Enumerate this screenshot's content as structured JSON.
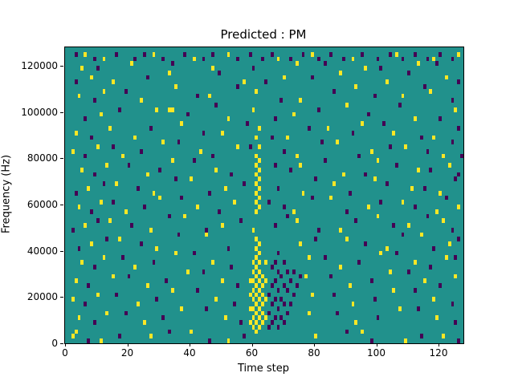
{
  "figure": {
    "title": "Predicted : PM",
    "xlabel": "Time step",
    "ylabel": "Frequency (Hz)"
  },
  "chart_data": {
    "type": "heatmap",
    "title": "Predicted : PM",
    "xlabel": "Time step",
    "ylabel": "Frequency (Hz)",
    "xlim": [
      0,
      128
    ],
    "ylim": [
      0,
      128000
    ],
    "x_ticks": [
      0,
      20,
      40,
      60,
      80,
      100,
      120
    ],
    "y_ticks": [
      0,
      20000,
      40000,
      60000,
      80000,
      100000,
      120000
    ],
    "grid": false,
    "legend": "none",
    "colors": {
      "background": "#21918c",
      "high": "#fde725",
      "low": "#440154"
    },
    "cell_size": {
      "time_steps": 1,
      "hz": 2000
    },
    "high_cells": [
      [
        6,
        124000
      ],
      [
        12,
        122000
      ],
      [
        28,
        124000
      ],
      [
        41,
        122000
      ],
      [
        52,
        124000
      ],
      [
        68,
        122000
      ],
      [
        79,
        124000
      ],
      [
        92,
        122000
      ],
      [
        106,
        124000
      ],
      [
        118,
        122000
      ],
      [
        126,
        124000
      ],
      [
        5,
        118000
      ],
      [
        21,
        120000
      ],
      [
        47,
        118000
      ],
      [
        74,
        120000
      ],
      [
        96,
        118000
      ],
      [
        113,
        120000
      ],
      [
        8,
        114000
      ],
      [
        15,
        112000
      ],
      [
        33,
        116000
      ],
      [
        57,
        112000
      ],
      [
        70,
        114000
      ],
      [
        88,
        116000
      ],
      [
        103,
        112000
      ],
      [
        122,
        114000
      ],
      [
        4,
        106000
      ],
      [
        12,
        108000
      ],
      [
        24,
        104000
      ],
      [
        35,
        110000
      ],
      [
        46,
        106000
      ],
      [
        61,
        108000
      ],
      [
        75,
        104000
      ],
      [
        93,
        110000
      ],
      [
        108,
        106000
      ],
      [
        117,
        108000
      ],
      [
        11,
        98000
      ],
      [
        29,
        100000
      ],
      [
        33,
        100000
      ],
      [
        34,
        100000
      ],
      [
        52,
        96000
      ],
      [
        60,
        100000
      ],
      [
        73,
        98000
      ],
      [
        90,
        102000
      ],
      [
        112,
        96000
      ],
      [
        125,
        100000
      ],
      [
        3,
        90000
      ],
      [
        14,
        92000
      ],
      [
        22,
        88000
      ],
      [
        37,
        94000
      ],
      [
        50,
        90000
      ],
      [
        71,
        88000
      ],
      [
        84,
        92000
      ],
      [
        95,
        94000
      ],
      [
        105,
        90000
      ],
      [
        118,
        88000
      ],
      [
        2,
        82000
      ],
      [
        10,
        84000
      ],
      [
        18,
        80000
      ],
      [
        31,
        86000
      ],
      [
        43,
        82000
      ],
      [
        55,
        84000
      ],
      [
        74,
        80000
      ],
      [
        87,
        86000
      ],
      [
        98,
        82000
      ],
      [
        109,
        84000
      ],
      [
        121,
        80000
      ],
      [
        5,
        74000
      ],
      [
        13,
        76000
      ],
      [
        26,
        72000
      ],
      [
        34,
        78000
      ],
      [
        48,
        74000
      ],
      [
        75,
        76000
      ],
      [
        89,
        72000
      ],
      [
        100,
        78000
      ],
      [
        113,
        74000
      ],
      [
        123,
        76000
      ],
      [
        61,
        56000
      ],
      [
        62,
        58000
      ],
      [
        61,
        60000
      ],
      [
        62,
        62000
      ],
      [
        61,
        64000
      ],
      [
        62,
        66000
      ],
      [
        61,
        68000
      ],
      [
        62,
        70000
      ],
      [
        61,
        72000
      ],
      [
        62,
        74000
      ],
      [
        61,
        76000
      ],
      [
        62,
        78000
      ],
      [
        61,
        80000
      ],
      [
        62,
        84000
      ],
      [
        61,
        88000
      ],
      [
        62,
        92000
      ],
      [
        7,
        66000
      ],
      [
        16,
        68000
      ],
      [
        28,
        64000
      ],
      [
        40,
        70000
      ],
      [
        51,
        66000
      ],
      [
        76,
        64000
      ],
      [
        86,
        68000
      ],
      [
        99,
        70000
      ],
      [
        111,
        66000
      ],
      [
        120,
        64000
      ],
      [
        4,
        58000
      ],
      [
        11,
        60000
      ],
      [
        19,
        56000
      ],
      [
        30,
        62000
      ],
      [
        42,
        58000
      ],
      [
        54,
        60000
      ],
      [
        73,
        56000
      ],
      [
        85,
        62000
      ],
      [
        97,
        58000
      ],
      [
        108,
        60000
      ],
      [
        119,
        56000
      ],
      [
        126,
        58000
      ],
      [
        6,
        50000
      ],
      [
        14,
        52000
      ],
      [
        27,
        48000
      ],
      [
        38,
        54000
      ],
      [
        50,
        50000
      ],
      [
        60,
        48000
      ],
      [
        74,
        52000
      ],
      [
        88,
        48000
      ],
      [
        100,
        54000
      ],
      [
        110,
        50000
      ],
      [
        121,
        52000
      ],
      [
        59,
        8000
      ],
      [
        59,
        14000
      ],
      [
        59,
        20000
      ],
      [
        59,
        26000
      ],
      [
        60,
        6000
      ],
      [
        60,
        10000
      ],
      [
        60,
        14000
      ],
      [
        60,
        18000
      ],
      [
        60,
        22000
      ],
      [
        60,
        26000
      ],
      [
        60,
        30000
      ],
      [
        60,
        34000
      ],
      [
        61,
        4000
      ],
      [
        61,
        8000
      ],
      [
        61,
        12000
      ],
      [
        61,
        16000
      ],
      [
        61,
        20000
      ],
      [
        61,
        24000
      ],
      [
        61,
        28000
      ],
      [
        61,
        32000
      ],
      [
        61,
        36000
      ],
      [
        61,
        40000
      ],
      [
        61,
        44000
      ],
      [
        62,
        6000
      ],
      [
        62,
        10000
      ],
      [
        62,
        14000
      ],
      [
        62,
        18000
      ],
      [
        62,
        22000
      ],
      [
        62,
        26000
      ],
      [
        62,
        30000
      ],
      [
        62,
        34000
      ],
      [
        62,
        38000
      ],
      [
        62,
        42000
      ],
      [
        63,
        8000
      ],
      [
        63,
        12000
      ],
      [
        63,
        16000
      ],
      [
        63,
        20000
      ],
      [
        63,
        24000
      ],
      [
        63,
        28000
      ],
      [
        64,
        10000
      ],
      [
        64,
        18000
      ],
      [
        64,
        26000
      ],
      [
        64,
        34000
      ],
      [
        8,
        42000
      ],
      [
        17,
        44000
      ],
      [
        29,
        40000
      ],
      [
        45,
        46000
      ],
      [
        75,
        42000
      ],
      [
        90,
        44000
      ],
      [
        103,
        40000
      ],
      [
        114,
        46000
      ],
      [
        123,
        42000
      ],
      [
        5,
        34000
      ],
      [
        12,
        36000
      ],
      [
        22,
        32000
      ],
      [
        35,
        38000
      ],
      [
        47,
        34000
      ],
      [
        78,
        36000
      ],
      [
        88,
        32000
      ],
      [
        101,
        38000
      ],
      [
        112,
        34000
      ],
      [
        122,
        36000
      ],
      [
        3,
        26000
      ],
      [
        15,
        28000
      ],
      [
        26,
        24000
      ],
      [
        39,
        30000
      ],
      [
        50,
        26000
      ],
      [
        77,
        28000
      ],
      [
        91,
        24000
      ],
      [
        104,
        30000
      ],
      [
        115,
        26000
      ],
      [
        125,
        28000
      ],
      [
        2,
        18000
      ],
      [
        10,
        20000
      ],
      [
        23,
        16000
      ],
      [
        34,
        22000
      ],
      [
        48,
        18000
      ],
      [
        79,
        20000
      ],
      [
        92,
        16000
      ],
      [
        105,
        22000
      ],
      [
        118,
        18000
      ],
      [
        4,
        10000
      ],
      [
        13,
        12000
      ],
      [
        25,
        8000
      ],
      [
        37,
        14000
      ],
      [
        51,
        10000
      ],
      [
        78,
        12000
      ],
      [
        93,
        8000
      ],
      [
        107,
        14000
      ],
      [
        119,
        10000
      ],
      [
        2,
        2000
      ],
      [
        3,
        4000
      ],
      [
        11,
        0
      ],
      [
        27,
        2000
      ],
      [
        40,
        4000
      ],
      [
        52,
        0
      ],
      [
        80,
        2000
      ],
      [
        95,
        4000
      ],
      [
        109,
        0
      ],
      [
        121,
        2000
      ]
    ],
    "low_cells": [
      [
        3,
        124000
      ],
      [
        9,
        122000
      ],
      [
        16,
        124000
      ],
      [
        22,
        122000
      ],
      [
        25,
        124000
      ],
      [
        31,
        122000
      ],
      [
        38,
        124000
      ],
      [
        44,
        122000
      ],
      [
        47,
        124000
      ],
      [
        55,
        122000
      ],
      [
        59,
        124000
      ],
      [
        63,
        122000
      ],
      [
        66,
        124000
      ],
      [
        72,
        122000
      ],
      [
        76,
        124000
      ],
      [
        81,
        122000
      ],
      [
        85,
        124000
      ],
      [
        89,
        122000
      ],
      [
        95,
        124000
      ],
      [
        100,
        122000
      ],
      [
        104,
        124000
      ],
      [
        108,
        122000
      ],
      [
        112,
        124000
      ],
      [
        116,
        122000
      ],
      [
        120,
        124000
      ],
      [
        124,
        122000
      ],
      [
        10,
        118000
      ],
      [
        34,
        120000
      ],
      [
        60,
        118000
      ],
      [
        83,
        120000
      ],
      [
        101,
        118000
      ],
      [
        119,
        120000
      ],
      [
        3,
        112000
      ],
      [
        26,
        114000
      ],
      [
        49,
        116000
      ],
      [
        64,
        112000
      ],
      [
        79,
        114000
      ],
      [
        110,
        116000
      ],
      [
        126,
        112000
      ],
      [
        9,
        104000
      ],
      [
        19,
        108000
      ],
      [
        42,
        106000
      ],
      [
        55,
        110000
      ],
      [
        69,
        104000
      ],
      [
        86,
        108000
      ],
      [
        99,
        106000
      ],
      [
        115,
        110000
      ],
      [
        124,
        104000
      ],
      [
        6,
        96000
      ],
      [
        17,
        100000
      ],
      [
        39,
        98000
      ],
      [
        48,
        102000
      ],
      [
        67,
        96000
      ],
      [
        81,
        100000
      ],
      [
        97,
        98000
      ],
      [
        107,
        102000
      ],
      [
        120,
        96000
      ],
      [
        8,
        88000
      ],
      [
        27,
        92000
      ],
      [
        44,
        90000
      ],
      [
        58,
        94000
      ],
      [
        66,
        88000
      ],
      [
        78,
        92000
      ],
      [
        92,
        90000
      ],
      [
        102,
        94000
      ],
      [
        114,
        88000
      ],
      [
        126,
        92000
      ],
      [
        6,
        80000
      ],
      [
        15,
        84000
      ],
      [
        24,
        82000
      ],
      [
        36,
        86000
      ],
      [
        47,
        80000
      ],
      [
        59,
        84000
      ],
      [
        70,
        82000
      ],
      [
        82,
        86000
      ],
      [
        94,
        80000
      ],
      [
        104,
        84000
      ],
      [
        116,
        82000
      ],
      [
        124,
        86000
      ],
      [
        127,
        80000
      ],
      [
        9,
        72000
      ],
      [
        20,
        76000
      ],
      [
        30,
        74000
      ],
      [
        41,
        78000
      ],
      [
        53,
        72000
      ],
      [
        67,
        76000
      ],
      [
        72,
        74000
      ],
      [
        83,
        78000
      ],
      [
        96,
        72000
      ],
      [
        106,
        76000
      ],
      [
        117,
        74000
      ],
      [
        126,
        72000
      ],
      [
        3,
        64000
      ],
      [
        12,
        68000
      ],
      [
        23,
        66000
      ],
      [
        35,
        70000
      ],
      [
        46,
        64000
      ],
      [
        57,
        68000
      ],
      [
        68,
        66000
      ],
      [
        80,
        70000
      ],
      [
        91,
        64000
      ],
      [
        103,
        68000
      ],
      [
        115,
        66000
      ],
      [
        125,
        70000
      ],
      [
        8,
        56000
      ],
      [
        15,
        60000
      ],
      [
        25,
        58000
      ],
      [
        37,
        62000
      ],
      [
        49,
        56000
      ],
      [
        65,
        60000
      ],
      [
        70,
        58000
      ],
      [
        79,
        62000
      ],
      [
        90,
        56000
      ],
      [
        101,
        60000
      ],
      [
        112,
        58000
      ],
      [
        122,
        62000
      ],
      [
        2,
        48000
      ],
      [
        10,
        52000
      ],
      [
        21,
        50000
      ],
      [
        33,
        54000
      ],
      [
        45,
        48000
      ],
      [
        56,
        52000
      ],
      [
        67,
        50000
      ],
      [
        71,
        54000
      ],
      [
        81,
        48000
      ],
      [
        93,
        52000
      ],
      [
        105,
        50000
      ],
      [
        116,
        54000
      ],
      [
        124,
        48000
      ],
      [
        65,
        6000
      ],
      [
        65,
        12000
      ],
      [
        65,
        20000
      ],
      [
        66,
        8000
      ],
      [
        66,
        16000
      ],
      [
        66,
        24000
      ],
      [
        66,
        32000
      ],
      [
        67,
        10000
      ],
      [
        67,
        18000
      ],
      [
        67,
        26000
      ],
      [
        67,
        34000
      ],
      [
        68,
        6000
      ],
      [
        68,
        14000
      ],
      [
        68,
        22000
      ],
      [
        68,
        30000
      ],
      [
        68,
        38000
      ],
      [
        69,
        10000
      ],
      [
        69,
        18000
      ],
      [
        69,
        28000
      ],
      [
        70,
        8000
      ],
      [
        70,
        16000
      ],
      [
        70,
        24000
      ],
      [
        70,
        34000
      ],
      [
        71,
        12000
      ],
      [
        71,
        22000
      ],
      [
        71,
        30000
      ],
      [
        72,
        16000
      ],
      [
        72,
        26000
      ],
      [
        73,
        20000
      ],
      [
        73,
        30000
      ],
      [
        74,
        24000
      ],
      [
        75,
        28000
      ],
      [
        4,
        40000
      ],
      [
        13,
        44000
      ],
      [
        24,
        42000
      ],
      [
        36,
        46000
      ],
      [
        52,
        40000
      ],
      [
        80,
        44000
      ],
      [
        96,
        42000
      ],
      [
        108,
        46000
      ],
      [
        118,
        40000
      ],
      [
        126,
        44000
      ],
      [
        9,
        32000
      ],
      [
        18,
        36000
      ],
      [
        28,
        34000
      ],
      [
        41,
        38000
      ],
      [
        53,
        32000
      ],
      [
        83,
        36000
      ],
      [
        94,
        34000
      ],
      [
        106,
        38000
      ],
      [
        117,
        32000
      ],
      [
        125,
        36000
      ],
      [
        7,
        24000
      ],
      [
        20,
        28000
      ],
      [
        32,
        26000
      ],
      [
        44,
        30000
      ],
      [
        55,
        24000
      ],
      [
        85,
        28000
      ],
      [
        98,
        26000
      ],
      [
        110,
        30000
      ],
      [
        120,
        24000
      ],
      [
        6,
        16000
      ],
      [
        16,
        20000
      ],
      [
        29,
        18000
      ],
      [
        42,
        22000
      ],
      [
        54,
        16000
      ],
      [
        86,
        20000
      ],
      [
        99,
        18000
      ],
      [
        112,
        22000
      ],
      [
        124,
        16000
      ],
      [
        9,
        8000
      ],
      [
        19,
        12000
      ],
      [
        31,
        10000
      ],
      [
        45,
        14000
      ],
      [
        56,
        8000
      ],
      [
        87,
        12000
      ],
      [
        100,
        10000
      ],
      [
        113,
        14000
      ],
      [
        125,
        8000
      ],
      [
        7,
        0
      ],
      [
        17,
        2000
      ],
      [
        33,
        4000
      ],
      [
        46,
        0
      ],
      [
        57,
        2000
      ],
      [
        90,
        4000
      ],
      [
        98,
        0
      ],
      [
        114,
        2000
      ],
      [
        126,
        0
      ]
    ]
  }
}
